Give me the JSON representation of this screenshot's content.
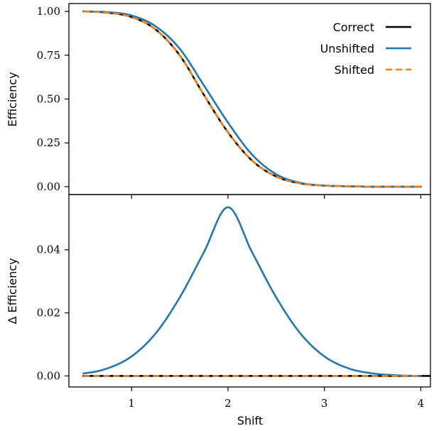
{
  "chart_data": [
    {
      "type": "line",
      "panel": "top",
      "title": "",
      "xlabel": "",
      "ylabel": "Efficiency",
      "xlim": [
        0.35,
        4.1
      ],
      "ylim": [
        -0.045,
        1.045
      ],
      "yticks": [
        0.0,
        0.25,
        0.5,
        0.75,
        1.0
      ],
      "ytick_labels": [
        "0.00",
        "0.25",
        "0.50",
        "0.75",
        "1.00"
      ],
      "grid": false,
      "legend": "top-right",
      "series": [
        {
          "name": "Correct",
          "color": "#000000",
          "style": "solid",
          "x": [
            0.5,
            0.75,
            1.0,
            1.25,
            1.5,
            1.75,
            2.0,
            2.25,
            2.5,
            2.75,
            3.0,
            3.25,
            3.5,
            3.75,
            4.0
          ],
          "y": [
            1.0,
            0.993,
            0.968,
            0.897,
            0.749,
            0.524,
            0.31,
            0.149,
            0.058,
            0.019,
            0.006,
            0.002,
            0.0,
            0.0,
            0.0
          ]
        },
        {
          "name": "Unshifted",
          "color": "#1f77b4",
          "style": "solid",
          "x": [
            0.5,
            0.75,
            1.0,
            1.25,
            1.5,
            1.75,
            2.0,
            2.25,
            2.5,
            2.75,
            3.0,
            3.25,
            3.5,
            3.75,
            4.0
          ],
          "y": [
            1.0,
            0.996,
            0.977,
            0.915,
            0.787,
            0.578,
            0.366,
            0.183,
            0.071,
            0.022,
            0.006,
            0.002,
            0.0,
            0.0,
            0.0
          ]
        },
        {
          "name": "Shifted",
          "color": "#ff7f0e",
          "style": "dashed",
          "x": [
            0.5,
            0.75,
            1.0,
            1.25,
            1.5,
            1.75,
            2.0,
            2.25,
            2.5,
            2.75,
            3.0,
            3.25,
            3.5,
            3.75,
            4.0
          ],
          "y": [
            1.0,
            0.993,
            0.968,
            0.897,
            0.749,
            0.524,
            0.31,
            0.149,
            0.058,
            0.019,
            0.006,
            0.002,
            0.0,
            0.0,
            0.0
          ]
        }
      ]
    },
    {
      "type": "line",
      "panel": "bottom",
      "title": "",
      "xlabel": "Shift",
      "ylabel": "Δ Efficiency",
      "xlim": [
        0.35,
        4.1
      ],
      "ylim": [
        -0.0035,
        0.0575
      ],
      "xticks": [
        1,
        2,
        3,
        4
      ],
      "xtick_labels": [
        "1",
        "2",
        "3",
        "4"
      ],
      "yticks": [
        0.0,
        0.02,
        0.04
      ],
      "ytick_labels": [
        "0.00",
        "0.02",
        "0.04"
      ],
      "grid": false,
      "series": [
        {
          "name": "Correct",
          "color": "#000000",
          "style": "solid",
          "x": [
            0.5,
            4.1
          ],
          "y": [
            0.0,
            0.0
          ]
        },
        {
          "name": "Unshifted",
          "color": "#1f77b4",
          "style": "solid",
          "x": [
            0.5,
            0.75,
            1.0,
            1.25,
            1.5,
            1.75,
            2.0,
            2.25,
            2.5,
            2.75,
            3.0,
            3.25,
            3.5,
            3.75,
            4.0
          ],
          "y": [
            0.0008,
            0.0024,
            0.0062,
            0.0135,
            0.0249,
            0.0392,
            0.0535,
            0.0392,
            0.0249,
            0.0135,
            0.0062,
            0.0024,
            0.0008,
            0.0002,
            0.0
          ]
        },
        {
          "name": "Shifted",
          "color": "#ff7f0e",
          "style": "dashed",
          "x": [
            0.5,
            4.0
          ],
          "y": [
            0.0,
            0.0
          ]
        }
      ]
    }
  ]
}
